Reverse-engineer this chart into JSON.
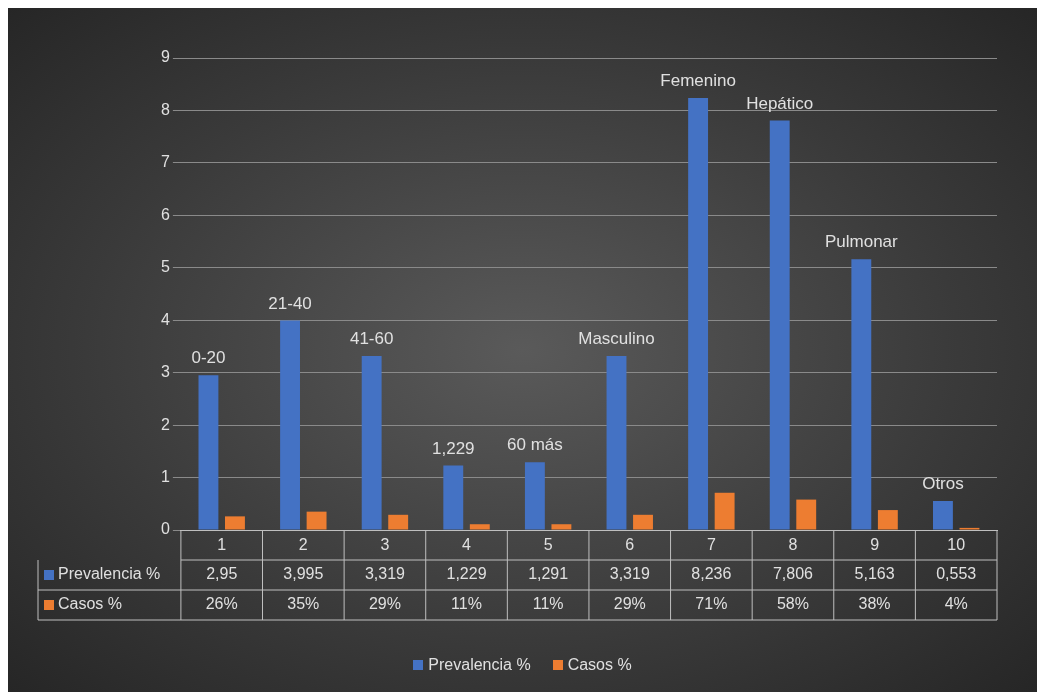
{
  "chart_data": {
    "type": "bar",
    "categories": [
      "1",
      "2",
      "3",
      "4",
      "5",
      "6",
      "7",
      "8",
      "9",
      "10"
    ],
    "series": [
      {
        "name": "Prevalencia %",
        "color": "#4472c4",
        "values": [
          2.95,
          3.995,
          3.319,
          1.229,
          1.291,
          3.319,
          8.236,
          7.806,
          5.163,
          0.553
        ],
        "value_labels": [
          "2,95",
          "3,995",
          "3,319",
          "1,229",
          "1,291",
          "3,319",
          "8,236",
          "7,806",
          "5,163",
          "0,553"
        ]
      },
      {
        "name": "Casos %",
        "color": "#ed7d31",
        "values": [
          0.26,
          0.35,
          0.29,
          0.11,
          0.11,
          0.29,
          0.71,
          0.58,
          0.38,
          0.04
        ],
        "value_labels": [
          "26%",
          "35%",
          "29%",
          "11%",
          "11%",
          "29%",
          "71%",
          "58%",
          "38%",
          "4%"
        ]
      }
    ],
    "ylim": [
      0,
      9
    ],
    "yticks": [
      0,
      1,
      2,
      3,
      4,
      5,
      6,
      7,
      8,
      9
    ],
    "grid": "y",
    "legend": "bottom",
    "annotations": [
      {
        "text": "0-20",
        "x": "1",
        "y": 2.95
      },
      {
        "text": "21-40",
        "x": "2",
        "y": 3.995
      },
      {
        "text": "41-60",
        "x": "3",
        "y": 3.319
      },
      {
        "text": "1,229",
        "x": "4",
        "y": 1.229
      },
      {
        "text": "60 más",
        "x": "5",
        "y": 1.291
      },
      {
        "text": "Masculino",
        "x": "6",
        "y": 3.319
      },
      {
        "text": "Femenino",
        "x": "7",
        "y": 8.236
      },
      {
        "text": "Hepático",
        "x": "8",
        "y": 7.806
      },
      {
        "text": "Pulmonar",
        "x": "9",
        "y": 5.163
      },
      {
        "text": "Otros",
        "x": "10",
        "y": 0.553
      }
    ]
  }
}
